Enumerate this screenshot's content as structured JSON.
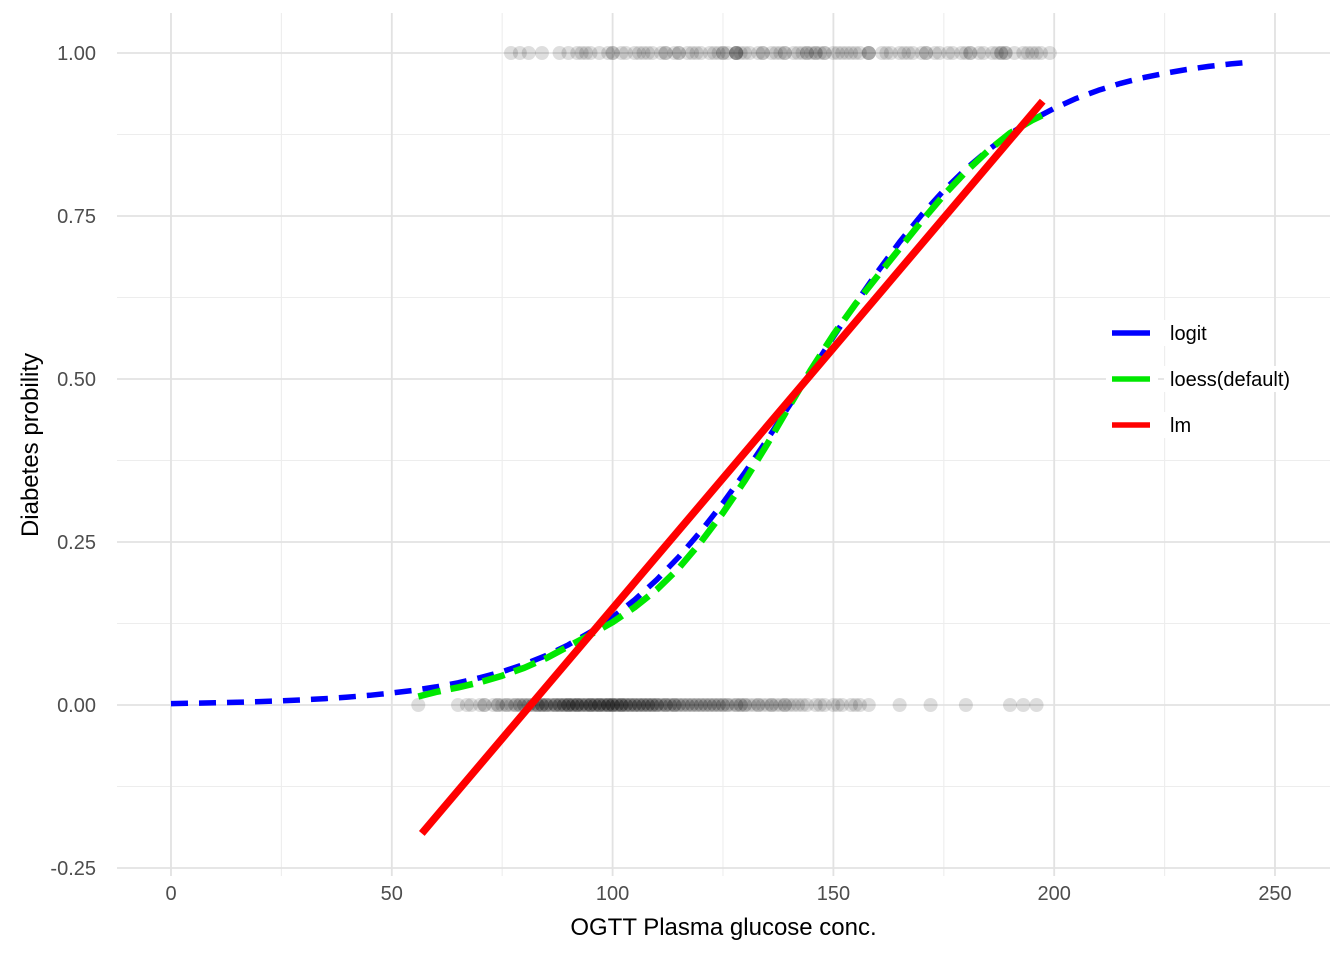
{
  "chart_data": {
    "type": "scatter",
    "title": "",
    "xlabel": "OGTT Plasma glucose conc.",
    "ylabel": "Diabetes probility",
    "xlim": [
      -16,
      264
    ],
    "ylim": [
      -0.26,
      1.07
    ],
    "grid": true,
    "x_ticks": [
      0,
      50,
      100,
      150,
      200,
      250
    ],
    "x_tick_labels": [
      "0",
      "50",
      "100",
      "150",
      "200",
      "250"
    ],
    "x_minor_ticks": [
      25,
      75,
      125,
      175,
      225
    ],
    "y_ticks": [
      -0.25,
      0,
      0.25,
      0.5,
      0.75,
      1
    ],
    "y_tick_labels": [
      "-0.25",
      "0.00",
      "0.25",
      "0.50",
      "0.75",
      "1.00"
    ],
    "y_minor_ticks": [
      -0.125,
      0.125,
      0.375,
      0.625,
      0.875
    ],
    "legend_position": "right-inside",
    "legend": [
      {
        "label": "logit",
        "color": "#0000FF",
        "linetype": "dashed"
      },
      {
        "label": "loess(default)",
        "color": "#00E800",
        "linetype": "dashed"
      },
      {
        "label": "lm",
        "color": "#FF0000",
        "linetype": "solid"
      }
    ],
    "series": [
      {
        "name": "logit",
        "color": "#0000FF",
        "linetype": "dashed",
        "width": 5.5,
        "points": [
          [
            0,
            0.0022
          ],
          [
            5,
            0.0028
          ],
          [
            10,
            0.0034
          ],
          [
            15,
            0.0042
          ],
          [
            20,
            0.0052
          ],
          [
            25,
            0.0064
          ],
          [
            30,
            0.008
          ],
          [
            35,
            0.0098
          ],
          [
            40,
            0.0121
          ],
          [
            45,
            0.0149
          ],
          [
            50,
            0.0184
          ],
          [
            55,
            0.0226
          ],
          [
            60,
            0.0277
          ],
          [
            65,
            0.0341
          ],
          [
            70,
            0.0418
          ],
          [
            75,
            0.0511
          ],
          [
            80,
            0.0625
          ],
          [
            85,
            0.0761
          ],
          [
            90,
            0.0924
          ],
          [
            95,
            0.1119
          ],
          [
            100,
            0.1347
          ],
          [
            105,
            0.1614
          ],
          [
            110,
            0.1922
          ],
          [
            115,
            0.2272
          ],
          [
            120,
            0.2666
          ],
          [
            125,
            0.31
          ],
          [
            130,
            0.3571
          ],
          [
            135,
            0.4071
          ],
          [
            140,
            0.4591
          ],
          [
            145,
            0.512
          ],
          [
            150,
            0.5646
          ],
          [
            155,
            0.6159
          ],
          [
            160,
            0.6646
          ],
          [
            165,
            0.7101
          ],
          [
            170,
            0.7518
          ],
          [
            175,
            0.7892
          ],
          [
            180,
            0.8223
          ],
          [
            185,
            0.8511
          ],
          [
            190,
            0.876
          ],
          [
            195,
            0.8973
          ],
          [
            200,
            0.9152
          ],
          [
            205,
            0.9304
          ],
          [
            210,
            0.9428
          ],
          [
            215,
            0.9533
          ],
          [
            220,
            0.9619
          ],
          [
            225,
            0.9689
          ],
          [
            230,
            0.9747
          ],
          [
            235,
            0.9795
          ],
          [
            240,
            0.9833
          ],
          [
            245,
            0.9864
          ]
        ]
      },
      {
        "name": "loess(default)",
        "color": "#00E800",
        "linetype": "dashed",
        "width": 6.5,
        "points": [
          [
            56,
            0.013
          ],
          [
            60,
            0.02
          ],
          [
            65,
            0.027
          ],
          [
            70,
            0.035
          ],
          [
            75,
            0.045
          ],
          [
            80,
            0.057
          ],
          [
            85,
            0.072
          ],
          [
            90,
            0.09
          ],
          [
            95,
            0.108
          ],
          [
            100,
            0.127
          ],
          [
            105,
            0.15
          ],
          [
            110,
            0.177
          ],
          [
            115,
            0.21
          ],
          [
            120,
            0.25
          ],
          [
            125,
            0.295
          ],
          [
            130,
            0.345
          ],
          [
            135,
            0.4
          ],
          [
            140,
            0.458
          ],
          [
            145,
            0.515
          ],
          [
            150,
            0.568
          ],
          [
            155,
            0.615
          ],
          [
            160,
            0.658
          ],
          [
            165,
            0.7
          ],
          [
            170,
            0.742
          ],
          [
            175,
            0.782
          ],
          [
            180,
            0.818
          ],
          [
            185,
            0.85
          ],
          [
            190,
            0.877
          ],
          [
            195,
            0.897
          ],
          [
            197.5,
            0.905
          ]
        ]
      },
      {
        "name": "lm",
        "color": "#FF0000",
        "linetype": "solid",
        "width": 7.5,
        "points": [
          [
            56.8,
            -0.197
          ],
          [
            197.4,
            0.926
          ]
        ]
      }
    ],
    "points_style": {
      "color": "#000000",
      "alpha": 0.13,
      "radius": 7
    },
    "points_y1": [
      77,
      79,
      81,
      84,
      88,
      90,
      92,
      93,
      94,
      95,
      97,
      99,
      100,
      100,
      102,
      103,
      105,
      106,
      107,
      108,
      109,
      111,
      112,
      112,
      114,
      115,
      115,
      117,
      118,
      119,
      120,
      122,
      123,
      124,
      125,
      125,
      126,
      128,
      128,
      128,
      128,
      129,
      130,
      131,
      133,
      134,
      134,
      136,
      137,
      138,
      139,
      139,
      141,
      142,
      143,
      144,
      144,
      145,
      146,
      146,
      147,
      148,
      148,
      150,
      151,
      152,
      153,
      154,
      155,
      156,
      158,
      158,
      158,
      161,
      162,
      163,
      165,
      166,
      167,
      168,
      170,
      171,
      171,
      173,
      174,
      176,
      177,
      179,
      180,
      181,
      181,
      183,
      184,
      186,
      187,
      188,
      188,
      189,
      189,
      191,
      193,
      194,
      195,
      196,
      197,
      199
    ],
    "points_y0": [
      56,
      65,
      67,
      68,
      70,
      71,
      71,
      73,
      74,
      74,
      75,
      76,
      76,
      77,
      78,
      78,
      79,
      79,
      80,
      80,
      81,
      81,
      82,
      82,
      83,
      83,
      83,
      84,
      84,
      84,
      85,
      85,
      85,
      86,
      86,
      87,
      87,
      87,
      88,
      88,
      88,
      89,
      89,
      89,
      90,
      90,
      90,
      90,
      91,
      91,
      91,
      92,
      92,
      92,
      92,
      93,
      93,
      93,
      94,
      94,
      94,
      95,
      95,
      95,
      95,
      96,
      96,
      96,
      97,
      97,
      97,
      97,
      98,
      98,
      98,
      99,
      99,
      99,
      99,
      100,
      100,
      100,
      100,
      101,
      101,
      101,
      102,
      102,
      102,
      102,
      103,
      103,
      103,
      104,
      104,
      104,
      105,
      105,
      105,
      106,
      106,
      106,
      107,
      107,
      107,
      108,
      108,
      108,
      109,
      109,
      109,
      110,
      110,
      110,
      111,
      111,
      112,
      112,
      112,
      113,
      113,
      114,
      114,
      114,
      115,
      115,
      116,
      116,
      117,
      117,
      118,
      118,
      119,
      119,
      120,
      120,
      121,
      121,
      122,
      122,
      123,
      123,
      124,
      124,
      125,
      125,
      126,
      126,
      127,
      128,
      128,
      129,
      129,
      130,
      130,
      131,
      132,
      133,
      133,
      134,
      135,
      136,
      136,
      137,
      138,
      139,
      139,
      140,
      141,
      142,
      143,
      144,
      146,
      147,
      148,
      150,
      151,
      152,
      154,
      155,
      156,
      158,
      165,
      172,
      180,
      190,
      193,
      196
    ]
  }
}
